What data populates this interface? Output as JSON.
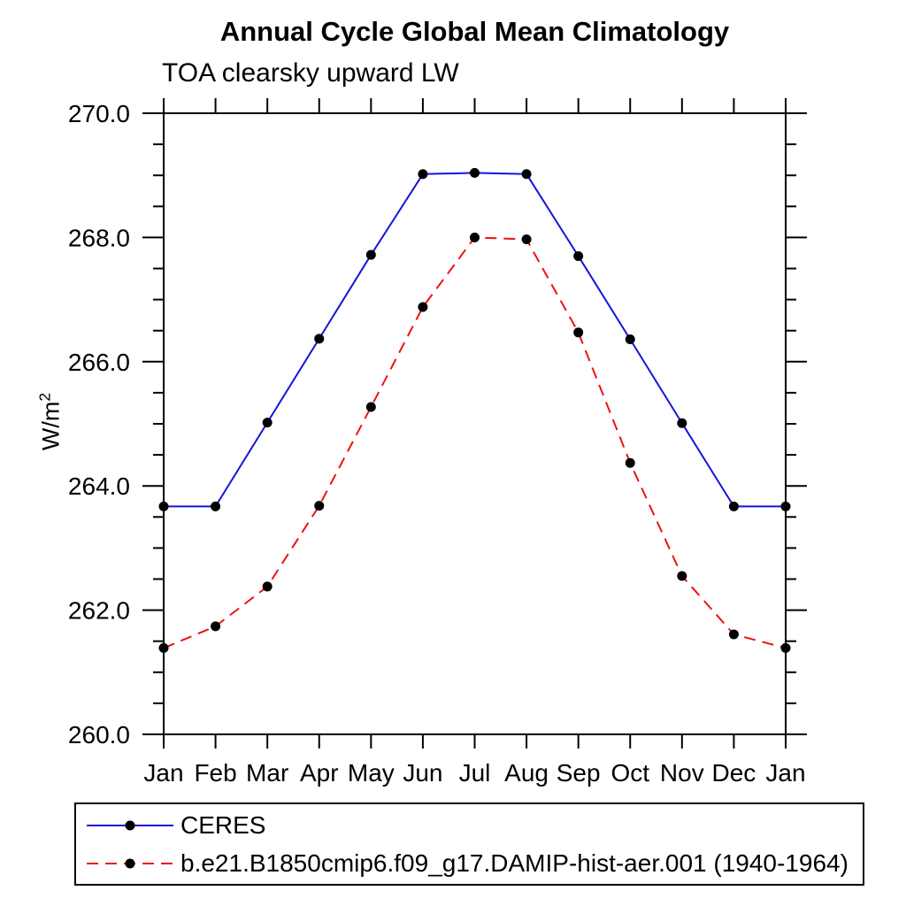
{
  "chart_data": {
    "type": "line",
    "title": "Annual Cycle Global Mean Climatology",
    "subtitle": "TOA clearsky upward LW",
    "ylabel": "W/m²",
    "ylabel_base": "W/m",
    "ylabel_exp": "2",
    "x_categories": [
      "Jan",
      "Feb",
      "Mar",
      "Apr",
      "May",
      "Jun",
      "Jul",
      "Aug",
      "Sep",
      "Oct",
      "Nov",
      "Dec",
      "Jan"
    ],
    "ylim": [
      260.0,
      270.0
    ],
    "y_major_ticks": [
      260.0,
      262.0,
      264.0,
      266.0,
      268.0,
      270.0
    ],
    "y_tick_labels": [
      "260.0",
      "262.0",
      "264.0",
      "266.0",
      "268.0",
      "270.0"
    ],
    "y_minor_step": 0.5,
    "grid": false,
    "legend_position": "bottom",
    "marker": "filled-circle",
    "marker_color": "#000000",
    "series": [
      {
        "name": "CERES",
        "color": "#1414dd",
        "line_style": "solid",
        "values": [
          263.67,
          263.67,
          265.02,
          266.37,
          267.72,
          269.02,
          269.04,
          269.02,
          267.7,
          266.36,
          265.01,
          263.67,
          263.67
        ]
      },
      {
        "name": "b.e21.B1850cmip6.f09_g17.DAMIP-hist-aer.001 (1940-1964)",
        "color": "#ee1111",
        "line_style": "dashed",
        "values": [
          261.39,
          261.74,
          262.38,
          263.68,
          265.27,
          266.88,
          268.0,
          267.97,
          266.47,
          264.37,
          262.55,
          261.61,
          261.39
        ]
      }
    ]
  }
}
